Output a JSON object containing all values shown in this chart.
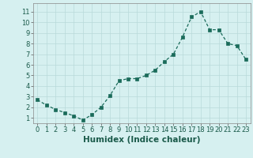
{
  "x": [
    0,
    1,
    2,
    3,
    4,
    5,
    6,
    7,
    8,
    9,
    10,
    11,
    12,
    13,
    14,
    15,
    16,
    17,
    18,
    19,
    20,
    21,
    22,
    23
  ],
  "y": [
    2.7,
    2.2,
    1.8,
    1.5,
    1.2,
    0.8,
    1.3,
    2.0,
    3.1,
    4.5,
    4.7,
    4.7,
    5.0,
    5.5,
    6.3,
    7.0,
    8.6,
    10.5,
    11.0,
    9.3,
    9.3,
    8.0,
    7.8,
    6.5
  ],
  "xlabel": "Humidex (Indice chaleur)",
  "xlim": [
    -0.5,
    23.5
  ],
  "ylim": [
    0.5,
    11.8
  ],
  "yticks": [
    1,
    2,
    3,
    4,
    5,
    6,
    7,
    8,
    9,
    10,
    11
  ],
  "xticks": [
    0,
    1,
    2,
    3,
    4,
    5,
    6,
    7,
    8,
    9,
    10,
    11,
    12,
    13,
    14,
    15,
    16,
    17,
    18,
    19,
    20,
    21,
    22,
    23
  ],
  "line_color": "#1a6b5a",
  "marker_color": "#1a6b5a",
  "bg_color": "#d6f0f0",
  "grid_color": "#b8dada",
  "xlabel_fontsize": 7.5,
  "tick_fontsize": 6.0
}
